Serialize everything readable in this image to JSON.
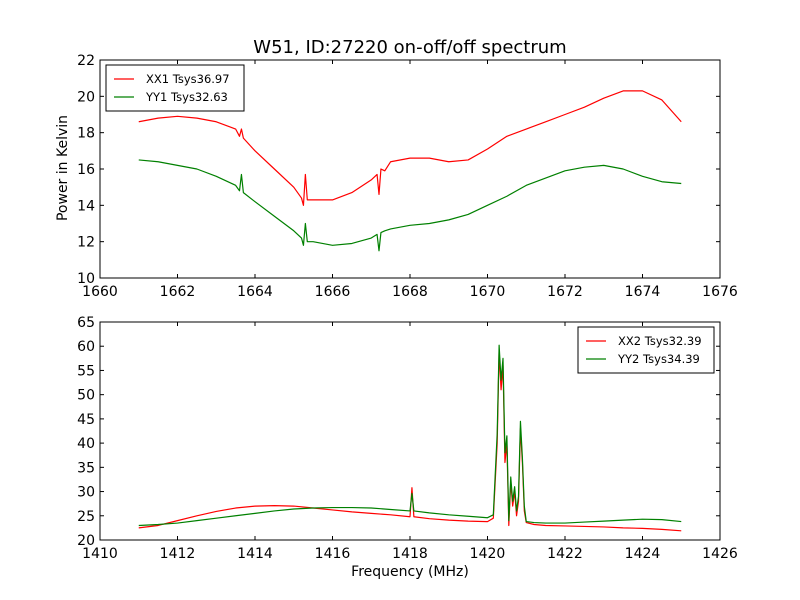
{
  "figure": {
    "title": "W51, ID:27220 on-off/off spectrum",
    "xlabel": "Frequency (MHz)",
    "ylabel": "Power in Kelvin"
  },
  "chart_data": [
    {
      "type": "line",
      "title": "W51, ID:27220 on-off/off spectrum",
      "xlabel": "",
      "ylabel": "Power in Kelvin",
      "xlim": [
        1660,
        1676
      ],
      "ylim": [
        10,
        22
      ],
      "xticks": [
        1660,
        1662,
        1664,
        1666,
        1668,
        1670,
        1672,
        1674,
        1676
      ],
      "yticks": [
        10,
        12,
        14,
        16,
        18,
        20,
        22
      ],
      "legend": "top-left",
      "grid": false,
      "series": [
        {
          "name": "XX1 Tsys36.97",
          "color": "#ff0000",
          "x": [
            1661.0,
            1661.5,
            1662.0,
            1662.5,
            1663.0,
            1663.5,
            1663.6,
            1663.65,
            1663.7,
            1664.0,
            1664.5,
            1665.0,
            1665.2,
            1665.25,
            1665.3,
            1665.35,
            1665.5,
            1666.0,
            1666.5,
            1667.0,
            1667.15,
            1667.2,
            1667.25,
            1667.35,
            1667.5,
            1668.0,
            1668.5,
            1669.0,
            1669.5,
            1670.0,
            1670.5,
            1671.0,
            1671.5,
            1672.0,
            1672.5,
            1673.0,
            1673.5,
            1674.0,
            1674.5,
            1675.0
          ],
          "y": [
            18.6,
            18.8,
            18.9,
            18.8,
            18.6,
            18.2,
            17.8,
            18.2,
            17.7,
            17.0,
            16.0,
            15.0,
            14.4,
            14.0,
            15.7,
            14.3,
            14.3,
            14.3,
            14.7,
            15.4,
            15.7,
            14.6,
            16.0,
            15.9,
            16.4,
            16.6,
            16.6,
            16.4,
            16.5,
            17.1,
            17.8,
            18.2,
            18.6,
            19.0,
            19.4,
            19.9,
            20.3,
            20.3,
            19.8,
            18.6
          ]
        },
        {
          "name": "YY1 Tsys32.63",
          "color": "#008000",
          "x": [
            1661.0,
            1661.5,
            1662.0,
            1662.5,
            1663.0,
            1663.5,
            1663.6,
            1663.65,
            1663.7,
            1664.0,
            1664.5,
            1665.0,
            1665.2,
            1665.25,
            1665.3,
            1665.35,
            1665.5,
            1666.0,
            1666.5,
            1667.0,
            1667.15,
            1667.2,
            1667.25,
            1667.35,
            1667.5,
            1668.0,
            1668.5,
            1669.0,
            1669.5,
            1670.0,
            1670.5,
            1671.0,
            1671.5,
            1672.0,
            1672.5,
            1673.0,
            1673.5,
            1674.0,
            1674.5,
            1675.0
          ],
          "y": [
            16.5,
            16.4,
            16.2,
            16.0,
            15.6,
            15.1,
            14.8,
            15.7,
            14.7,
            14.2,
            13.4,
            12.6,
            12.2,
            11.8,
            13.0,
            12.0,
            12.0,
            11.8,
            11.9,
            12.2,
            12.4,
            11.5,
            12.5,
            12.6,
            12.7,
            12.9,
            13.0,
            13.2,
            13.5,
            14.0,
            14.5,
            15.1,
            15.5,
            15.9,
            16.1,
            16.2,
            16.0,
            15.6,
            15.3,
            15.2
          ]
        }
      ]
    },
    {
      "type": "line",
      "title": "",
      "xlabel": "Frequency (MHz)",
      "ylabel": "",
      "xlim": [
        1410,
        1426
      ],
      "ylim": [
        20,
        65
      ],
      "xticks": [
        1410,
        1412,
        1414,
        1416,
        1418,
        1420,
        1422,
        1424,
        1426
      ],
      "yticks": [
        20,
        25,
        30,
        35,
        40,
        45,
        50,
        55,
        60,
        65
      ],
      "legend": "top-right",
      "grid": false,
      "series": [
        {
          "name": "XX2 Tsys32.39",
          "color": "#ff0000",
          "x": [
            1411.0,
            1411.5,
            1412.0,
            1412.5,
            1413.0,
            1413.5,
            1414.0,
            1414.5,
            1415.0,
            1415.5,
            1416.0,
            1416.5,
            1417.0,
            1417.5,
            1418.0,
            1418.05,
            1418.1,
            1418.5,
            1419.0,
            1419.5,
            1420.0,
            1420.15,
            1420.25,
            1420.3,
            1420.35,
            1420.4,
            1420.45,
            1420.5,
            1420.55,
            1420.6,
            1420.65,
            1420.7,
            1420.75,
            1420.8,
            1420.85,
            1420.9,
            1420.95,
            1421.0,
            1421.2,
            1421.5,
            1422.0,
            1422.5,
            1423.0,
            1423.5,
            1424.0,
            1424.5,
            1425.0
          ],
          "y": [
            22.5,
            23.0,
            24.0,
            25.0,
            25.9,
            26.6,
            27.0,
            27.1,
            27.0,
            26.6,
            26.2,
            25.8,
            25.5,
            25.2,
            24.8,
            30.8,
            24.8,
            24.4,
            24.1,
            23.9,
            23.8,
            24.5,
            40.0,
            59.0,
            51.0,
            56.0,
            36.0,
            40.0,
            23.0,
            32.0,
            27.0,
            30.0,
            25.0,
            28.0,
            43.0,
            36.0,
            26.0,
            23.6,
            23.2,
            23.0,
            22.9,
            22.8,
            22.7,
            22.5,
            22.4,
            22.2,
            21.9
          ]
        },
        {
          "name": "YY2 Tsys34.39",
          "color": "#008000",
          "x": [
            1411.0,
            1411.5,
            1412.0,
            1412.5,
            1413.0,
            1413.5,
            1414.0,
            1414.5,
            1415.0,
            1415.5,
            1416.0,
            1416.5,
            1417.0,
            1417.5,
            1418.0,
            1418.05,
            1418.1,
            1418.5,
            1419.0,
            1419.5,
            1420.0,
            1420.15,
            1420.25,
            1420.3,
            1420.35,
            1420.4,
            1420.45,
            1420.5,
            1420.55,
            1420.6,
            1420.65,
            1420.7,
            1420.75,
            1420.8,
            1420.85,
            1420.9,
            1420.95,
            1421.0,
            1421.2,
            1421.5,
            1422.0,
            1422.5,
            1423.0,
            1423.5,
            1424.0,
            1424.5,
            1425.0
          ],
          "y": [
            23.0,
            23.2,
            23.5,
            24.0,
            24.5,
            25.0,
            25.5,
            26.0,
            26.4,
            26.6,
            26.7,
            26.7,
            26.6,
            26.3,
            26.0,
            29.6,
            26.0,
            25.6,
            25.2,
            24.9,
            24.6,
            25.2,
            42.0,
            60.2,
            53.0,
            57.5,
            38.0,
            41.5,
            24.0,
            33.0,
            28.0,
            31.0,
            26.0,
            29.0,
            44.5,
            37.0,
            27.0,
            23.8,
            23.6,
            23.5,
            23.5,
            23.7,
            23.9,
            24.1,
            24.3,
            24.2,
            23.8
          ]
        }
      ]
    }
  ]
}
